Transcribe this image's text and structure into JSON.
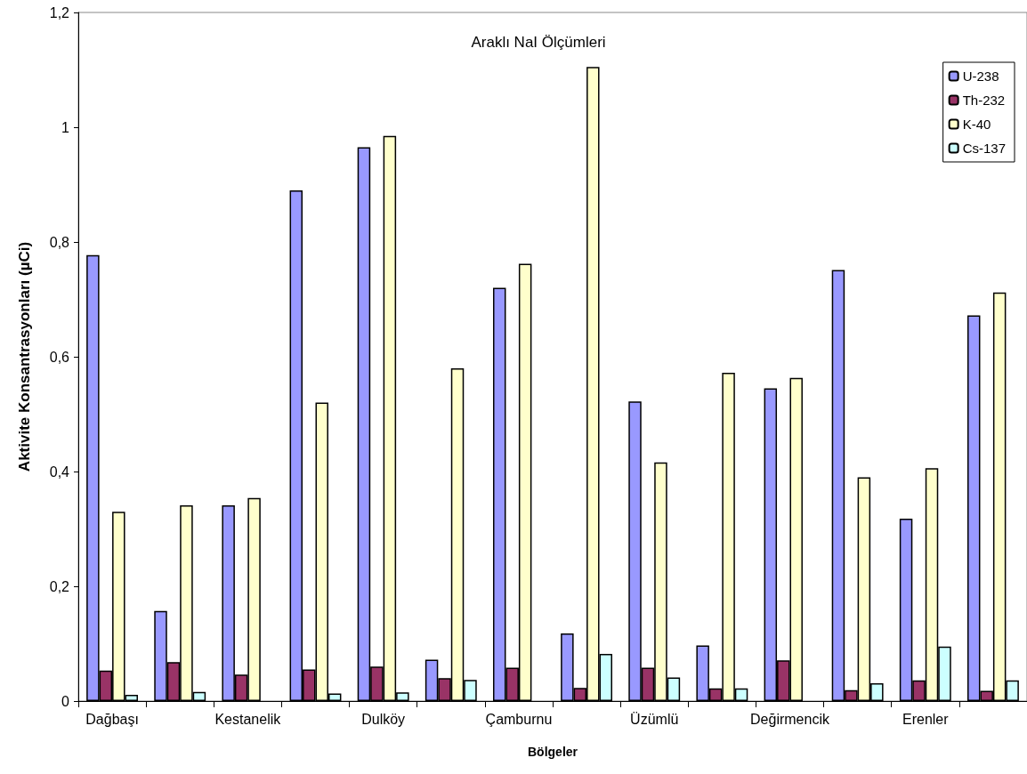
{
  "chart_data": {
    "type": "bar",
    "title": "Araklı NaI Ölçümleri",
    "xlabel": "Bölgeler",
    "ylabel": "Aktivite Konsantrasyonları (µCi)",
    "categories": [
      "Dağbaşı",
      null,
      "Kestanelik",
      null,
      "Dulköy",
      null,
      "Çamburnu",
      null,
      "Üzümlü",
      null,
      "Değirmencik",
      null,
      "Erenler",
      null
    ],
    "series": [
      {
        "name": "U-238",
        "color": "#9999ff",
        "values": [
          0.777,
          0.157,
          0.341,
          0.89,
          0.965,
          0.072,
          0.72,
          0.118,
          0.522,
          0.097,
          0.545,
          0.751,
          0.318,
          0.672
        ]
      },
      {
        "name": "Th-232",
        "color": "#993366",
        "values": [
          0.053,
          0.068,
          0.046,
          0.055,
          0.06,
          0.04,
          0.058,
          0.023,
          0.058,
          0.022,
          0.071,
          0.019,
          0.036,
          0.018
        ]
      },
      {
        "name": "K-40",
        "color": "#ffffcc",
        "values": [
          0.33,
          0.341,
          0.354,
          0.52,
          0.985,
          0.58,
          0.762,
          1.105,
          0.416,
          0.572,
          0.563,
          0.39,
          0.406,
          0.712
        ]
      },
      {
        "name": "Cs-137",
        "color": "#ccffff",
        "values": [
          0.011,
          0.016,
          null,
          0.013,
          0.015,
          0.037,
          null,
          0.082,
          0.041,
          0.022,
          null,
          0.031,
          0.095,
          0.036
        ]
      }
    ],
    "ylim": [
      0,
      1.2
    ],
    "yticks": [
      0,
      {
        "value": 0.2,
        "label": "0,2"
      },
      {
        "value": 0.4,
        "label": "0,4"
      },
      {
        "value": 0.6,
        "label": "0,6"
      },
      {
        "value": 0.8,
        "label": "0,8"
      },
      1,
      {
        "value": 1.2,
        "label": "1,2"
      }
    ],
    "grid": false,
    "legend": "top right"
  }
}
